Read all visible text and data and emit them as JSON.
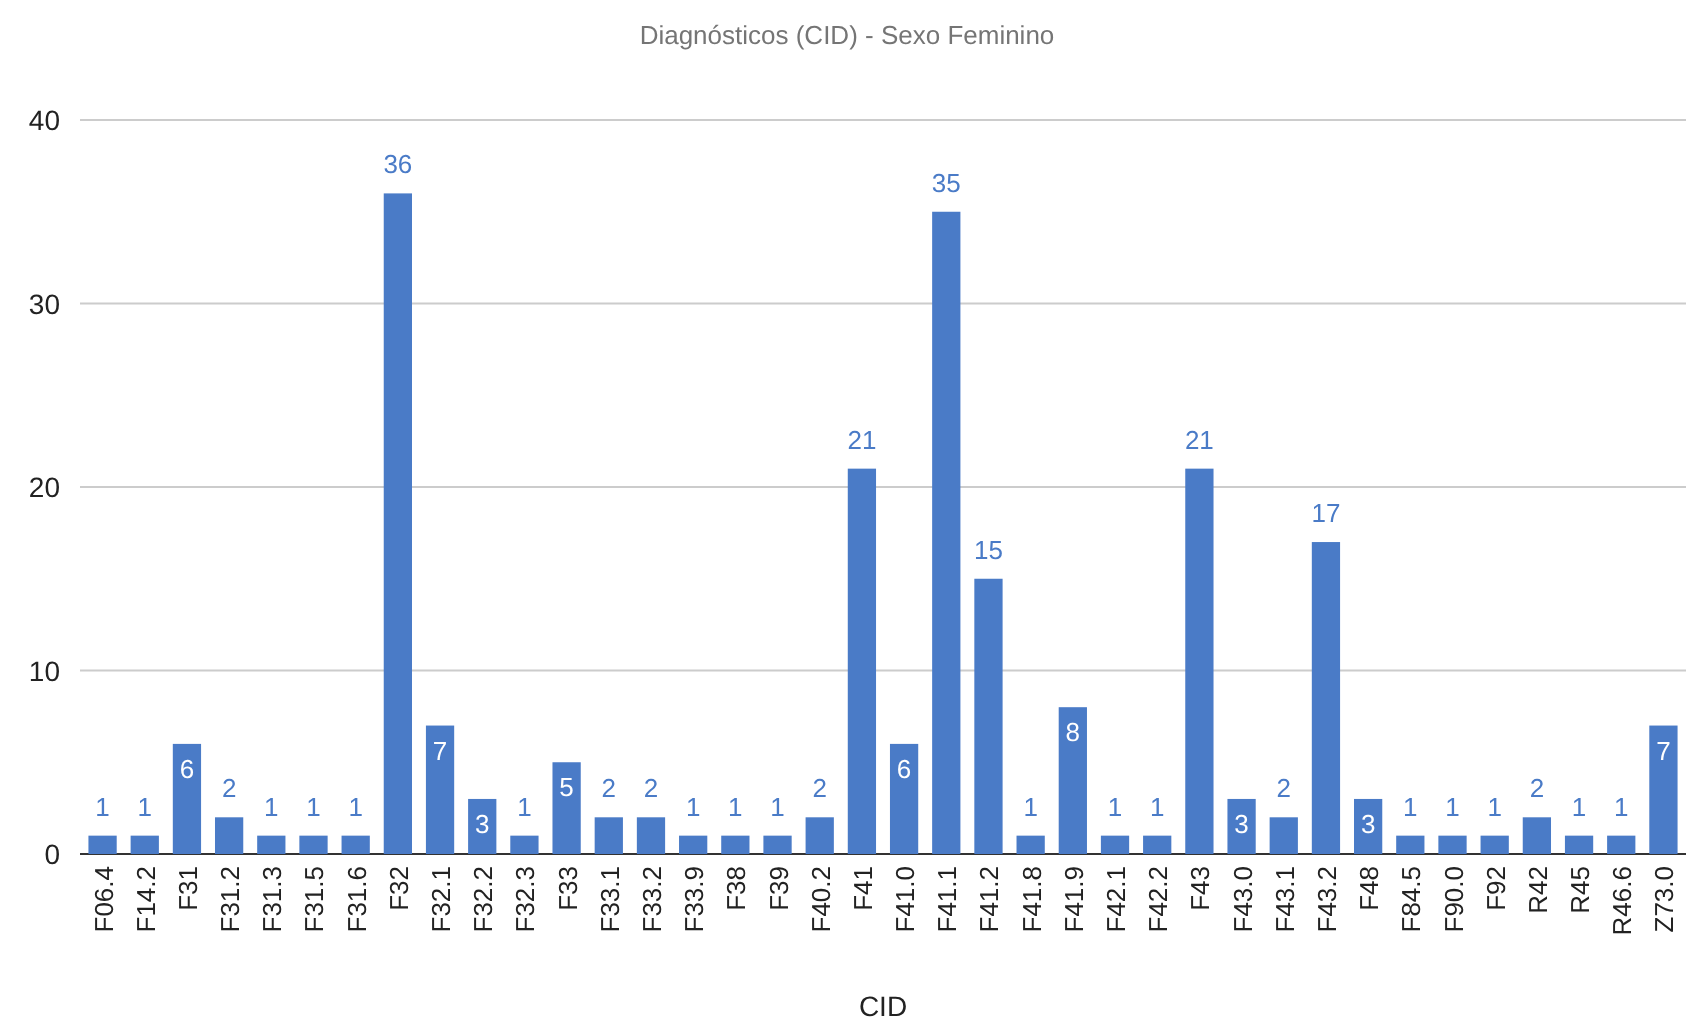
{
  "chart_data": {
    "type": "bar",
    "title": "Diagnósticos (CID) - Sexo Feminino",
    "xlabel": "CID",
    "categories": [
      "F06.4",
      "F14.2",
      "F31",
      "F31.2",
      "F31.3",
      "F31.5",
      "F31.6",
      "F32",
      "F32.1",
      "F32.2",
      "F32.3",
      "F33",
      "F33.1",
      "F33.2",
      "F33.9",
      "F38",
      "F39",
      "F40.2",
      "F41",
      "F41.0",
      "F41.1",
      "F41.2",
      "F41.8",
      "F41.9",
      "F42.1",
      "F42.2",
      "F43",
      "F43.0",
      "F43.1",
      "F43.2",
      "F48",
      "F84.5",
      "F90.0",
      "F92",
      "R42",
      "R45",
      "R46.6",
      "Z73.0"
    ],
    "values": [
      1,
      1,
      6,
      2,
      1,
      1,
      1,
      36,
      7,
      3,
      1,
      5,
      2,
      2,
      1,
      1,
      1,
      2,
      21,
      6,
      35,
      15,
      1,
      8,
      1,
      1,
      21,
      3,
      2,
      17,
      3,
      1,
      1,
      1,
      2,
      1,
      1,
      7
    ],
    "color": "#4a7bc7",
    "ylim": [
      0,
      40
    ],
    "yticks": [
      0,
      10,
      20,
      30,
      40
    ],
    "grid": "y",
    "data_labels": true
  }
}
